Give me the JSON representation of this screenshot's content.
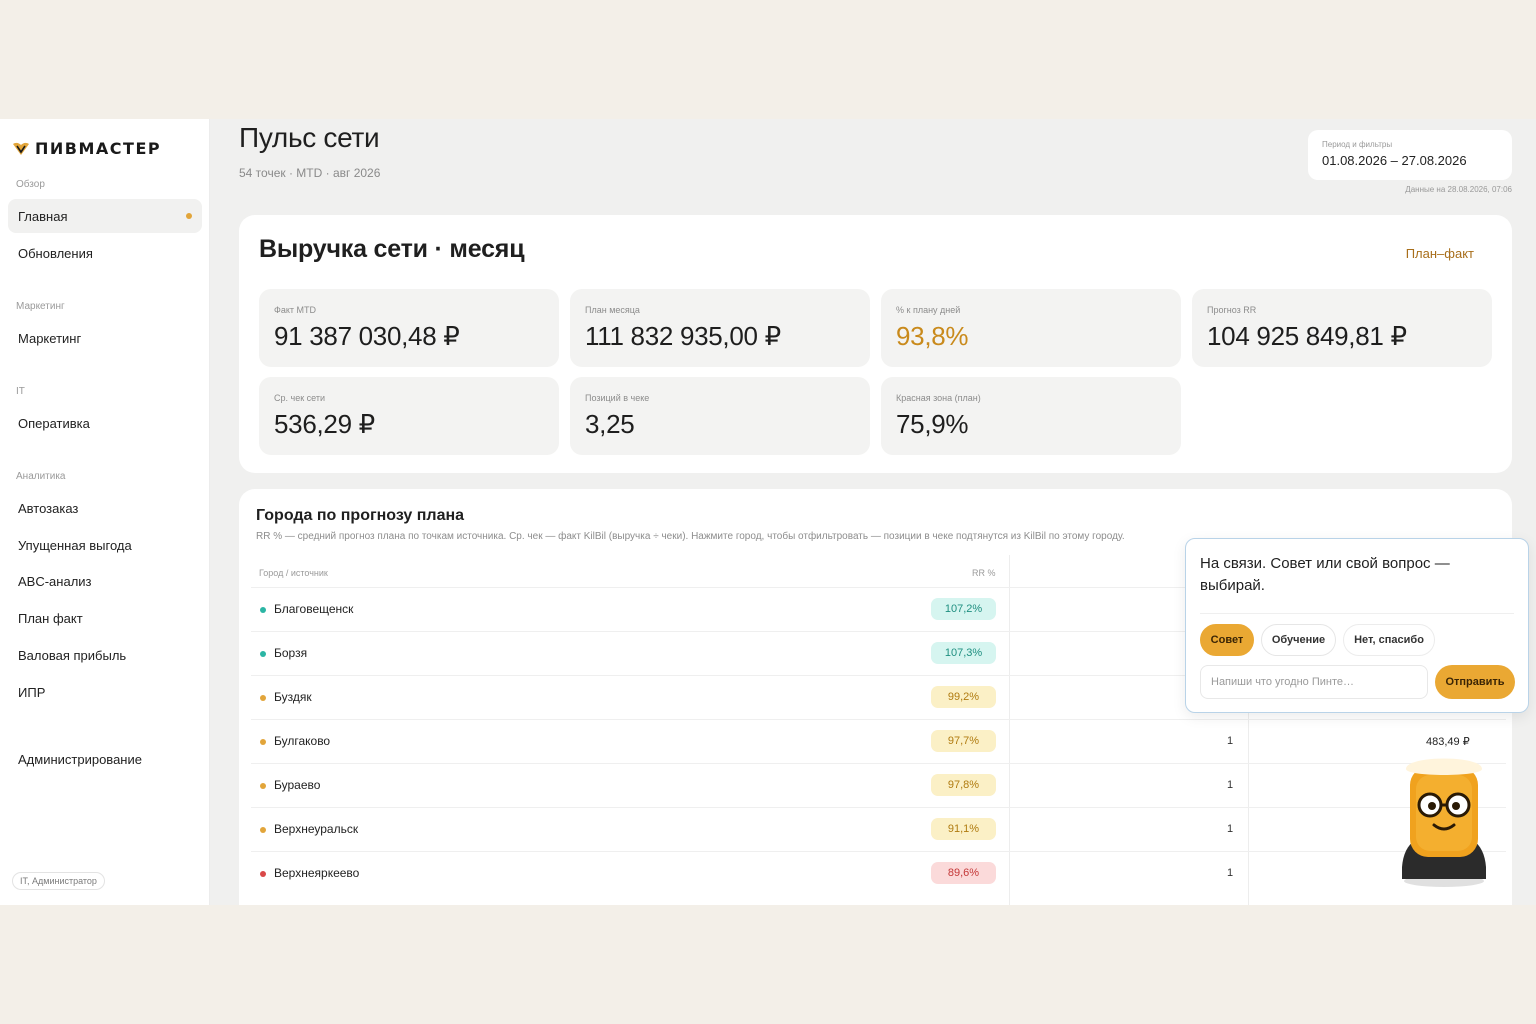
{
  "brand": {
    "name": "ПИВМАСТЕР"
  },
  "sidebar": {
    "sections": [
      {
        "label": "Обзор",
        "items": [
          {
            "label": "Главная",
            "active": true
          },
          {
            "label": "Обновления"
          }
        ]
      },
      {
        "label": "Маркетинг",
        "items": [
          {
            "label": "Маркетинг"
          }
        ]
      },
      {
        "label": "IT",
        "items": [
          {
            "label": "Оперативка"
          }
        ]
      },
      {
        "label": "Аналитика",
        "items": [
          {
            "label": "Автозаказ"
          },
          {
            "label": "Упущенная выгода"
          },
          {
            "label": "ABC-анализ"
          },
          {
            "label": "План факт"
          },
          {
            "label": "Валовая прибыль"
          },
          {
            "label": "ИПР"
          }
        ]
      }
    ],
    "admin_label": "Администрирование",
    "user_role": "IT, Администратор"
  },
  "header": {
    "title": "Пульс сети",
    "subtitle": "54 точек · MTD · авг 2026",
    "period_label": "Период и фильтры",
    "period_value": "01.08.2026 – 27.08.2026",
    "data_stamp": "Данные на 28.08.2026, 07:06"
  },
  "revenue": {
    "title": "Выручка сети · месяц",
    "link_label": "План–факт",
    "kpis": [
      {
        "label": "Факт MTD",
        "value": "91 387 030,48 ₽"
      },
      {
        "label": "План месяца",
        "value": "111 832 935,00 ₽"
      },
      {
        "label": "% к плану дней",
        "value": "93,8%"
      },
      {
        "label": "Прогноз RR",
        "value": "104 925 849,81 ₽"
      },
      {
        "label": "Ср. чек сети",
        "value": "536,29 ₽"
      },
      {
        "label": "Позиций в чеке",
        "value": "3,25"
      },
      {
        "label": "Красная зона (план)",
        "value": "75,9%"
      }
    ]
  },
  "cities": {
    "title": "Города по прогнозу плана",
    "description": "RR % — средний прогноз плана по точкам источника. Ср. чек — факт KilBil (выручка ÷ чеки). Нажмите город, чтобы отфильтровать — позиции в чеке подтянутся из KilBil по этому городу.",
    "col_city": "Город / источник",
    "col_rr": "RR %",
    "rows": [
      {
        "city": "Благовещенск",
        "rr": "107,2%",
        "status": "green"
      },
      {
        "city": "Борзя",
        "rr": "107,3%",
        "status": "green"
      },
      {
        "city": "Буздяк",
        "rr": "99,2%",
        "status": "yellow"
      },
      {
        "city": "Булгаково",
        "rr": "97,7%",
        "status": "yellow",
        "count": "1",
        "avg": "483,49 ₽"
      },
      {
        "city": "Бураево",
        "rr": "97,8%",
        "status": "yellow",
        "count": "1"
      },
      {
        "city": "Верхнеуральск",
        "rr": "91,1%",
        "status": "yellow",
        "count": "1"
      },
      {
        "city": "Верхнеяркеево",
        "rr": "89,6%",
        "status": "red",
        "count": "1"
      }
    ]
  },
  "chat": {
    "message": "На связи. Совет или свой вопрос — выбирай.",
    "options": [
      "Совет",
      "Обучение",
      "Нет, спасибо"
    ],
    "input_placeholder": "Напиши что угодно Пинте…",
    "send_label": "Отправить"
  },
  "colors": {
    "accent": "#eaa833",
    "green": "#1f8f80",
    "yellow": "#e2a53a",
    "red": "#d94848"
  }
}
